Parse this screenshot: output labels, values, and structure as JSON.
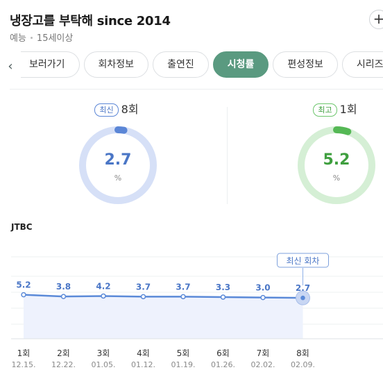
{
  "header": {
    "title": "냉장고를 부탁해 since 2014",
    "genre": "예능",
    "rating": "15세이상",
    "add_icon": "plus-icon"
  },
  "tabs": {
    "prev_icon": "chevron-left-icon",
    "items": [
      "보러가기",
      "회차정보",
      "출연진",
      "시청률",
      "편성정보",
      "시리즈"
    ],
    "active_index": 3
  },
  "stats": {
    "latest": {
      "badge": "최신",
      "episode": "8회",
      "value": "2.7",
      "unit": "%",
      "fraction": 0.027,
      "color": "#5b86d6",
      "track": "#d6e0f7"
    },
    "highest": {
      "badge": "최고",
      "episode": "1회",
      "value": "5.2",
      "unit": "%",
      "fraction": 0.052,
      "color": "#55b855",
      "track": "#d5efd5"
    }
  },
  "network": "JTBC",
  "chart_data": {
    "type": "line",
    "x": [
      "1회",
      "2회",
      "3회",
      "4회",
      "5회",
      "6회",
      "7회",
      "8회"
    ],
    "dates": [
      "12.15.",
      "12.22.",
      "01.05.",
      "01.12.",
      "01.19.",
      "01.26.",
      "02.02.",
      "02.09."
    ],
    "values": [
      5.2,
      3.8,
      4.2,
      3.7,
      3.7,
      3.3,
      3.0,
      2.7
    ],
    "value_labels": [
      "5.2",
      "3.8",
      "4.2",
      "3.7",
      "3.7",
      "3.3",
      "3.0",
      "2.7"
    ],
    "callout": "최신 회차",
    "ylim": [
      -30,
      20
    ],
    "line_color": "#5b8ad8",
    "fill_color": "#eef2fd"
  }
}
